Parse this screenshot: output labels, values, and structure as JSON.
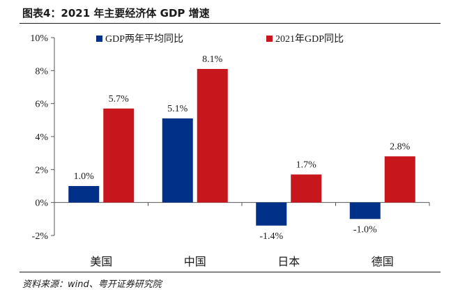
{
  "header": {
    "title": "图表4：2021 年主要经济体 GDP 增速"
  },
  "footer": {
    "source": "资料来源：wind、粤开证券研究院"
  },
  "chart_data": {
    "type": "bar",
    "title": "图表4：2021 年主要经济体 GDP 增速",
    "xlabel": "",
    "ylabel": "",
    "categories": [
      "美国",
      "中国",
      "日本",
      "德国"
    ],
    "series": [
      {
        "name": "GDP两年平均同比",
        "values": [
          1.0,
          5.1,
          -1.4,
          -1.0
        ],
        "labels": [
          "1.0%",
          "5.1%",
          "-1.4%",
          "-1.0%"
        ],
        "color": "#003087"
      },
      {
        "name": "2021年GDP同比",
        "values": [
          5.7,
          8.1,
          1.7,
          2.8
        ],
        "labels": [
          "5.7%",
          "8.1%",
          "1.7%",
          "2.8%"
        ],
        "color": "#c8161d"
      }
    ],
    "ylim": [
      -2,
      10
    ],
    "yticks": [
      -2,
      0,
      2,
      4,
      6,
      8,
      10
    ],
    "ytick_labels": [
      "-2%",
      "0%",
      "2%",
      "4%",
      "6%",
      "8%",
      "10%"
    ],
    "grid": false,
    "legend_position": "top-center"
  }
}
